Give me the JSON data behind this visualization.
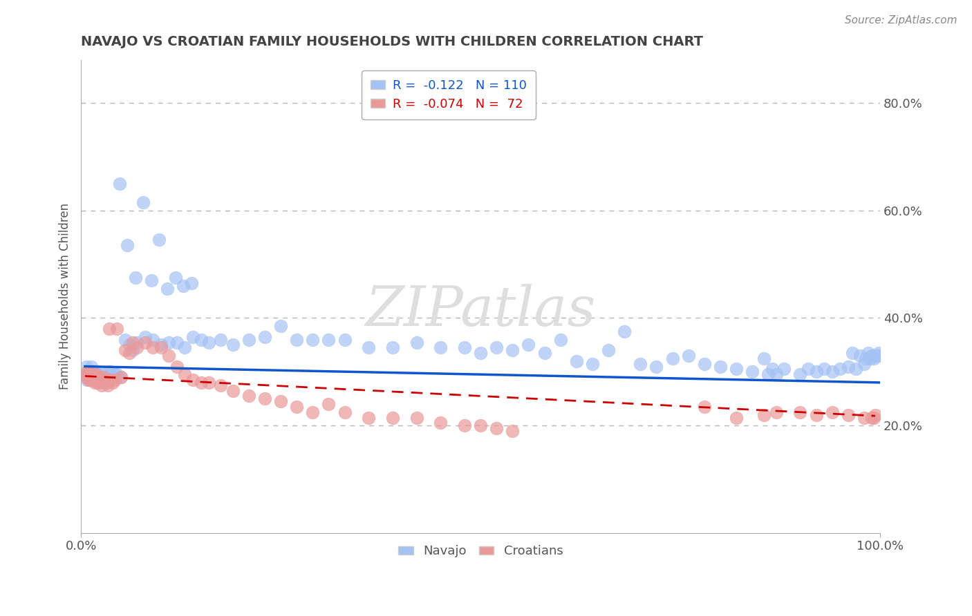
{
  "title": "NAVAJO VS CROATIAN FAMILY HOUSEHOLDS WITH CHILDREN CORRELATION CHART",
  "source_text": "Source: ZipAtlas.com",
  "ylabel": "Family Households with Children",
  "legend_navajo": "Navajo",
  "legend_croatians": "Croatians",
  "navajo_R": -0.122,
  "navajo_N": 110,
  "croatian_R": -0.074,
  "croatian_N": 72,
  "navajo_color": "#a4c2f4",
  "croatian_color": "#ea9999",
  "navajo_line_color": "#1155cc",
  "croatian_line_color": "#cc0000",
  "bg_color": "#ffffff",
  "grid_color": "#b7b7b7",
  "title_color": "#434343",
  "watermark_color": "#e8e8e8",
  "watermark_text": "ZIPatlas",
  "xlim": [
    0,
    1
  ],
  "ylim": [
    0.0,
    0.88
  ],
  "yticks": [
    0.2,
    0.4,
    0.6,
    0.8
  ],
  "ytick_labels": [
    "20.0%",
    "40.0%",
    "60.0%",
    "80.0%"
  ],
  "xtick_labels": [
    "0.0%",
    "100.0%"
  ],
  "navajo_x": [
    0.005,
    0.007,
    0.008,
    0.009,
    0.01,
    0.011,
    0.012,
    0.013,
    0.014,
    0.015,
    0.016,
    0.017,
    0.018,
    0.019,
    0.02,
    0.021,
    0.022,
    0.023,
    0.025,
    0.026,
    0.028,
    0.03,
    0.032,
    0.034,
    0.035,
    0.037,
    0.04,
    0.042,
    0.045,
    0.05,
    0.055,
    0.06,
    0.065,
    0.07,
    0.08,
    0.09,
    0.1,
    0.11,
    0.12,
    0.13,
    0.14,
    0.15,
    0.16,
    0.175,
    0.19,
    0.21,
    0.23,
    0.25,
    0.27,
    0.29,
    0.31,
    0.33,
    0.36,
    0.39,
    0.42,
    0.45,
    0.48,
    0.5,
    0.52,
    0.54,
    0.56,
    0.58,
    0.6,
    0.62,
    0.64,
    0.66,
    0.68,
    0.7,
    0.72,
    0.74,
    0.76,
    0.78,
    0.8,
    0.82,
    0.84,
    0.855,
    0.86,
    0.865,
    0.87,
    0.88,
    0.9,
    0.91,
    0.92,
    0.93,
    0.94,
    0.95,
    0.96,
    0.965,
    0.97,
    0.975,
    0.98,
    0.982,
    0.985,
    0.988,
    0.99,
    0.992,
    0.994,
    0.996,
    0.998,
    1.0,
    0.048,
    0.058,
    0.068,
    0.078,
    0.088,
    0.098,
    0.108,
    0.118,
    0.128,
    0.138
  ],
  "navajo_y": [
    0.295,
    0.31,
    0.285,
    0.3,
    0.29,
    0.295,
    0.285,
    0.31,
    0.295,
    0.3,
    0.29,
    0.285,
    0.295,
    0.3,
    0.29,
    0.285,
    0.295,
    0.28,
    0.285,
    0.29,
    0.295,
    0.29,
    0.285,
    0.295,
    0.3,
    0.29,
    0.29,
    0.295,
    0.295,
    0.29,
    0.36,
    0.35,
    0.34,
    0.355,
    0.365,
    0.36,
    0.35,
    0.355,
    0.355,
    0.345,
    0.365,
    0.36,
    0.355,
    0.36,
    0.35,
    0.36,
    0.365,
    0.385,
    0.36,
    0.36,
    0.36,
    0.36,
    0.345,
    0.345,
    0.355,
    0.345,
    0.345,
    0.335,
    0.345,
    0.34,
    0.35,
    0.335,
    0.36,
    0.32,
    0.315,
    0.34,
    0.375,
    0.315,
    0.31,
    0.325,
    0.33,
    0.315,
    0.31,
    0.305,
    0.3,
    0.325,
    0.295,
    0.305,
    0.295,
    0.305,
    0.295,
    0.305,
    0.3,
    0.305,
    0.3,
    0.305,
    0.31,
    0.335,
    0.305,
    0.33,
    0.315,
    0.325,
    0.335,
    0.325,
    0.33,
    0.325,
    0.33,
    0.33,
    0.335,
    0.33,
    0.65,
    0.535,
    0.475,
    0.615,
    0.47,
    0.545,
    0.455,
    0.475,
    0.46,
    0.465
  ],
  "croatian_x": [
    0.005,
    0.007,
    0.008,
    0.009,
    0.01,
    0.011,
    0.012,
    0.013,
    0.014,
    0.015,
    0.016,
    0.017,
    0.018,
    0.019,
    0.02,
    0.021,
    0.022,
    0.023,
    0.025,
    0.026,
    0.028,
    0.03,
    0.032,
    0.034,
    0.035,
    0.037,
    0.04,
    0.042,
    0.045,
    0.05,
    0.055,
    0.06,
    0.065,
    0.07,
    0.08,
    0.09,
    0.1,
    0.11,
    0.12,
    0.13,
    0.14,
    0.15,
    0.16,
    0.175,
    0.19,
    0.21,
    0.23,
    0.25,
    0.27,
    0.29,
    0.31,
    0.33,
    0.36,
    0.39,
    0.42,
    0.45,
    0.48,
    0.5,
    0.52,
    0.54,
    0.78,
    0.82,
    0.855,
    0.87,
    0.9,
    0.92,
    0.94,
    0.96,
    0.98,
    0.99,
    0.992,
    0.994
  ],
  "croatian_y": [
    0.295,
    0.29,
    0.3,
    0.285,
    0.295,
    0.29,
    0.285,
    0.295,
    0.29,
    0.295,
    0.29,
    0.28,
    0.29,
    0.295,
    0.285,
    0.28,
    0.29,
    0.285,
    0.285,
    0.275,
    0.29,
    0.285,
    0.28,
    0.275,
    0.38,
    0.285,
    0.28,
    0.285,
    0.38,
    0.29,
    0.34,
    0.335,
    0.355,
    0.345,
    0.355,
    0.345,
    0.345,
    0.33,
    0.31,
    0.295,
    0.285,
    0.28,
    0.28,
    0.275,
    0.265,
    0.255,
    0.25,
    0.245,
    0.235,
    0.225,
    0.24,
    0.225,
    0.215,
    0.215,
    0.215,
    0.205,
    0.2,
    0.2,
    0.195,
    0.19,
    0.235,
    0.215,
    0.22,
    0.225,
    0.225,
    0.22,
    0.225,
    0.22,
    0.215,
    0.215,
    0.215,
    0.22
  ],
  "navajo_trend_x": [
    0.005,
    1.0
  ],
  "navajo_trend_y": [
    0.31,
    0.28
  ],
  "croatian_trend_x": [
    0.005,
    0.994
  ],
  "croatian_trend_y": [
    0.292,
    0.218
  ]
}
